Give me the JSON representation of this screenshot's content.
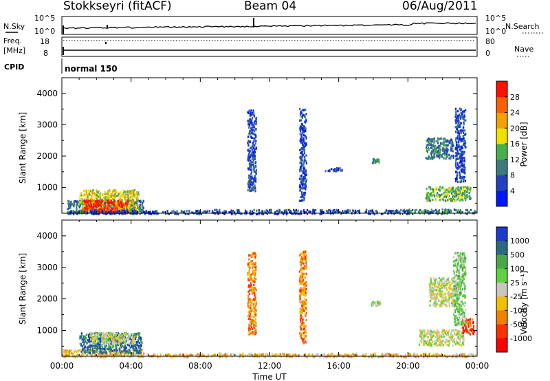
{
  "header": {
    "station": "Stokkseyri (fitACF)",
    "beam": "Beam 04",
    "date": "06/Aug/2011"
  },
  "status_panels": {
    "nsky_label": "N.Sky",
    "nsky_ticks": [
      "10^5",
      "10^0"
    ],
    "nsearch_label": "N.Search",
    "nsearch_ticks": [
      "10^5",
      "10^0"
    ],
    "freq_label": "Freq.",
    "freq_unit": "[MHz]",
    "freq_ticks": [
      "18",
      "8"
    ],
    "nave_label": "Nave",
    "nave_ticks": [
      "80",
      "0"
    ],
    "cpid_label": "CPID",
    "cpid_value": "normal 150"
  },
  "chart_data": [
    {
      "type": "heatmap",
      "panel": "power",
      "ylabel": "Slant Range [km]",
      "xlabel": "Time UT",
      "xlim_hours": [
        0,
        24
      ],
      "ylim_km": [
        180,
        4500
      ],
      "yticks": [
        "1000",
        "2000",
        "3000",
        "4000"
      ],
      "xticks": [
        "00:00",
        "04:00",
        "08:00",
        "12:00",
        "16:00",
        "20:00",
        "00:00"
      ],
      "colorbar": {
        "label": "Power [dB]",
        "tick_labels": [
          "4",
          "8",
          "12",
          "16",
          "20",
          "24",
          "28"
        ],
        "colors": [
          "#0018ff",
          "#2240c0",
          "#3a7a78",
          "#48b048",
          "#f0e000",
          "#f5a000",
          "#ff6000",
          "#ff1000"
        ]
      },
      "regions": [
        {
          "t": [
            0.3,
            4.7
          ],
          "r": [
            180,
            620
          ],
          "level": 2
        },
        {
          "t": [
            1.0,
            4.4
          ],
          "r": [
            250,
            950
          ],
          "level": 4
        },
        {
          "t": [
            1.2,
            3.8
          ],
          "r": [
            200,
            620
          ],
          "level": 7
        },
        {
          "t": [
            0.2,
            8.8
          ],
          "r": [
            180,
            290
          ],
          "level": 1
        },
        {
          "t": [
            8.8,
            20.0
          ],
          "r": [
            180,
            320
          ],
          "level": 1
        },
        {
          "t": [
            20.0,
            23.9
          ],
          "r": [
            180,
            330
          ],
          "level": 2
        },
        {
          "t": [
            10.7,
            11.2
          ],
          "r": [
            900,
            3500
          ],
          "level": 1
        },
        {
          "t": [
            13.7,
            14.1
          ],
          "r": [
            600,
            3550
          ],
          "level": 1
        },
        {
          "t": [
            21.0,
            22.6
          ],
          "r": [
            1950,
            2600
          ],
          "level": 2
        },
        {
          "t": [
            21.0,
            23.6
          ],
          "r": [
            600,
            1050
          ],
          "level": 3
        },
        {
          "t": [
            22.7,
            23.3
          ],
          "r": [
            1200,
            3550
          ],
          "level": 1
        },
        {
          "t": [
            15.2,
            16.2
          ],
          "r": [
            1550,
            1650
          ],
          "level": 1
        },
        {
          "t": [
            17.9,
            18.3
          ],
          "r": [
            1800,
            1950
          ],
          "level": 2
        }
      ]
    },
    {
      "type": "heatmap",
      "panel": "velocity",
      "ylabel": "Slant Range [km]",
      "xlabel": "Time UT",
      "xlim_hours": [
        0,
        24
      ],
      "ylim_km": [
        180,
        4500
      ],
      "yticks": [
        "1000",
        "2000",
        "3000",
        "4000"
      ],
      "xticks": [
        "00:00",
        "04:00",
        "08:00",
        "12:00",
        "16:00",
        "20:00",
        "00:00"
      ],
      "colorbar": {
        "label": "Velocity [m s⁻¹]",
        "tick_labels": [
          "1000",
          "500",
          "100",
          "25",
          "-25",
          "-100",
          "-500",
          "-1000"
        ],
        "colors": [
          "#1a3ad0",
          "#2a6a80",
          "#48a848",
          "#60d040",
          "#c8c8c0",
          "#f0c000",
          "#f08000",
          "#ff3000",
          "#ff0000"
        ]
      },
      "regions": [
        {
          "t": [
            0.0,
            4.7
          ],
          "r": [
            180,
            420
          ],
          "level": 5
        },
        {
          "t": [
            1.0,
            4.6
          ],
          "r": [
            300,
            950
          ],
          "level": 1
        },
        {
          "t": [
            1.6,
            4.2
          ],
          "r": [
            600,
            950
          ],
          "level": 4
        },
        {
          "t": [
            4.6,
            9.0
          ],
          "r": [
            180,
            280
          ],
          "level": 5
        },
        {
          "t": [
            9.0,
            19.5
          ],
          "r": [
            180,
            300
          ],
          "level": 5
        },
        {
          "t": [
            19.5,
            23.9
          ],
          "r": [
            180,
            300
          ],
          "level": 5
        },
        {
          "t": [
            10.7,
            11.2
          ],
          "r": [
            900,
            3500
          ],
          "level": 6
        },
        {
          "t": [
            13.7,
            14.1
          ],
          "r": [
            600,
            3550
          ],
          "level": 6
        },
        {
          "t": [
            21.2,
            22.8
          ],
          "r": [
            1800,
            2700
          ],
          "level": 4
        },
        {
          "t": [
            20.6,
            23.2
          ],
          "r": [
            550,
            1050
          ],
          "level": 4
        },
        {
          "t": [
            23.1,
            23.8
          ],
          "r": [
            900,
            1400
          ],
          "level": 7
        },
        {
          "t": [
            22.6,
            23.3
          ],
          "r": [
            1200,
            3500
          ],
          "level": 3
        },
        {
          "t": [
            17.8,
            18.4
          ],
          "r": [
            1800,
            1950
          ],
          "level": 4
        }
      ]
    }
  ]
}
